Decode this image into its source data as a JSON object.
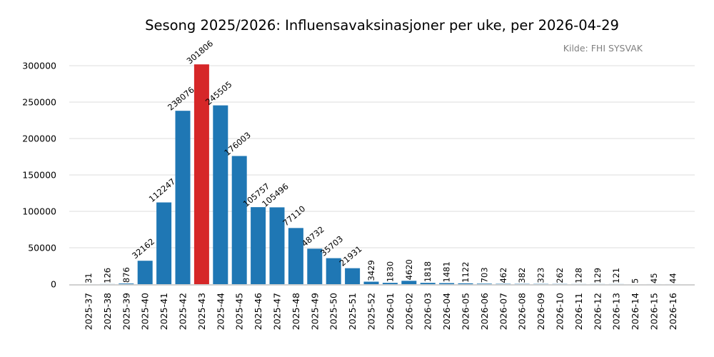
{
  "title": "Sesong 2025/2026: Influensavaksinasjoner per uke, per 2026-04-29",
  "source": "Kilde: FHI SYSVAK",
  "colors": {
    "bar": "#1f77b4",
    "highlight": "#d62728",
    "grid": "#e8e8e8",
    "axis": "#d0d0d0"
  },
  "chart_data": {
    "type": "bar",
    "title": "Sesong 2025/2026: Influensavaksinasjoner per uke, per 2026-04-29",
    "subtitle": "Kilde: FHI SYSVAK",
    "xlabel": "",
    "ylabel": "",
    "ylim": [
      0,
      330000
    ],
    "yticks": [
      0,
      50000,
      100000,
      150000,
      200000,
      250000,
      300000
    ],
    "grid": true,
    "legend": null,
    "highlight_category": "2025-43",
    "categories": [
      "2025-37",
      "2025-38",
      "2025-39",
      "2025-40",
      "2025-41",
      "2025-42",
      "2025-43",
      "2025-44",
      "2025-45",
      "2025-46",
      "2025-47",
      "2025-48",
      "2025-49",
      "2025-50",
      "2025-51",
      "2025-52",
      "2026-01",
      "2026-02",
      "2026-03",
      "2026-04",
      "2026-05",
      "2026-06",
      "2026-07",
      "2026-08",
      "2026-09",
      "2026-10",
      "2026-11",
      "2026-12",
      "2026-13",
      "2026-14",
      "2026-15",
      "2026-16"
    ],
    "values": [
      31,
      126,
      876,
      32162,
      112247,
      238076,
      301806,
      245505,
      176003,
      105757,
      105496,
      77110,
      48732,
      35703,
      21931,
      3429,
      1830,
      4620,
      1818,
      1481,
      1122,
      703,
      462,
      382,
      323,
      262,
      128,
      129,
      121,
      5,
      45,
      44
    ]
  }
}
